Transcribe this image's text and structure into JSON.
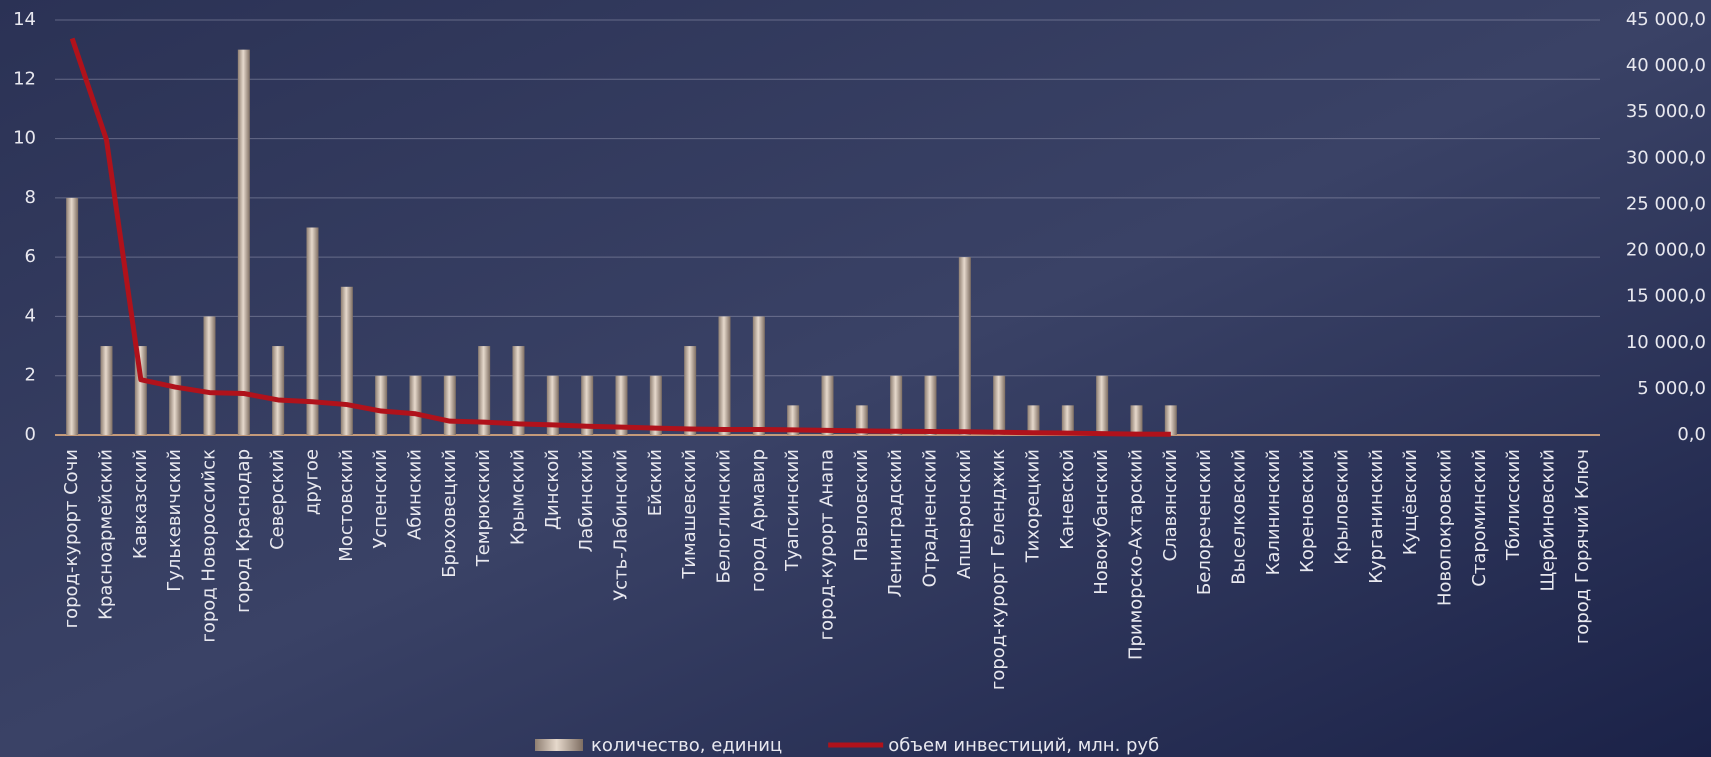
{
  "chart_data": {
    "type": "combo",
    "categories": [
      "город-курорт Сочи",
      "Красноармейский",
      "Кавказский",
      "Гулькевичский",
      "город Новороссийск",
      "город Краснодар",
      "Северский",
      "другое",
      "Мостовский",
      "Успенский",
      "Абинский",
      "Брюховецкий",
      "Темрюкский",
      "Крымский",
      "Динской",
      "Лабинский",
      "Усть-Лабинский",
      "Ейский",
      "Тимашевский",
      "Белоглинский",
      "город Армавир",
      "Туапсинский",
      "город-курорт Анапа",
      "Павловский",
      "Ленинградский",
      "Отрадненский",
      "Апшеронский",
      "город-курорт Геленджик",
      "Тихорецкий",
      "Каневской",
      "Новокубанский",
      "Приморско-Ахтарский",
      "Славянский",
      "Белореченский",
      "Выселковский",
      "Калининский",
      "Кореновский",
      "Крыловский",
      "Курганинский",
      "Кущёвский",
      "Новопокровский",
      "Староминский",
      "Тбилисский",
      "Щербиновский",
      "город Горячий Ключ"
    ],
    "series": [
      {
        "name": "количество, единиц",
        "type": "bar",
        "color": "#c9b8a8",
        "values": [
          8,
          3,
          3,
          2,
          4,
          13,
          3,
          7,
          5,
          2,
          2,
          2,
          3,
          3,
          2,
          2,
          2,
          2,
          3,
          4,
          4,
          1,
          2,
          1,
          2,
          2,
          6,
          2,
          1,
          1,
          2,
          1,
          1,
          0,
          0,
          0,
          0,
          0,
          0,
          0,
          0,
          0,
          0,
          0,
          0
        ]
      },
      {
        "name": "объем инвестиций, млн. руб",
        "type": "line",
        "axis": "y2",
        "color": "#b0121b",
        "values": [
          43000,
          32000,
          6000,
          5200,
          4600,
          4500,
          3800,
          3600,
          3300,
          2600,
          2300,
          1500,
          1400,
          1200,
          1100,
          950,
          850,
          750,
          650,
          600,
          600,
          550,
          500,
          450,
          400,
          380,
          350,
          300,
          250,
          200,
          150,
          100,
          80,
          null,
          null,
          null,
          null,
          null,
          null,
          null,
          null,
          null,
          null,
          null,
          null
        ]
      }
    ],
    "ylim": [
      0,
      14
    ],
    "yticks": [
      0,
      2,
      4,
      6,
      8,
      10,
      12,
      14
    ],
    "y2lim": [
      0,
      45000
    ],
    "y2ticks": [
      {
        "value": 0,
        "label": "0,0"
      },
      {
        "value": 5000,
        "label": "5 000,0"
      },
      {
        "value": 10000,
        "label": "10 000,0"
      },
      {
        "value": 15000,
        "label": "15 000,0"
      },
      {
        "value": 20000,
        "label": "20 000,0"
      },
      {
        "value": 25000,
        "label": "25 000,0"
      },
      {
        "value": 30000,
        "label": "30 000,0"
      },
      {
        "value": 35000,
        "label": "35 000,0"
      },
      {
        "value": 40000,
        "label": "40 000,0"
      },
      {
        "value": 45000,
        "label": "45 000,0"
      }
    ],
    "grid": true,
    "legend": "bottom"
  }
}
